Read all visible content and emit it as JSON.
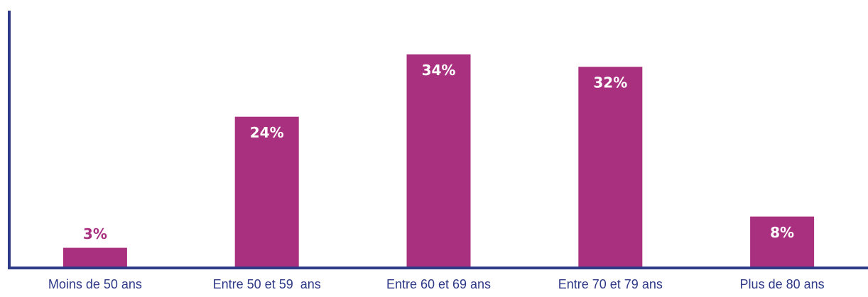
{
  "chart_data": {
    "type": "bar",
    "categories": [
      "Moins de 50 ans",
      "Entre 50 et 59  ans",
      "Entre 60 et 69 ans",
      "Entre 70 et 79 ans",
      "Plus de 80 ans"
    ],
    "values": [
      3,
      24,
      34,
      32,
      8
    ],
    "value_labels": [
      "3%",
      "24%",
      "34%",
      "32%",
      "8%"
    ],
    "color": "#a8307f",
    "ylim": [
      0,
      41
    ]
  }
}
